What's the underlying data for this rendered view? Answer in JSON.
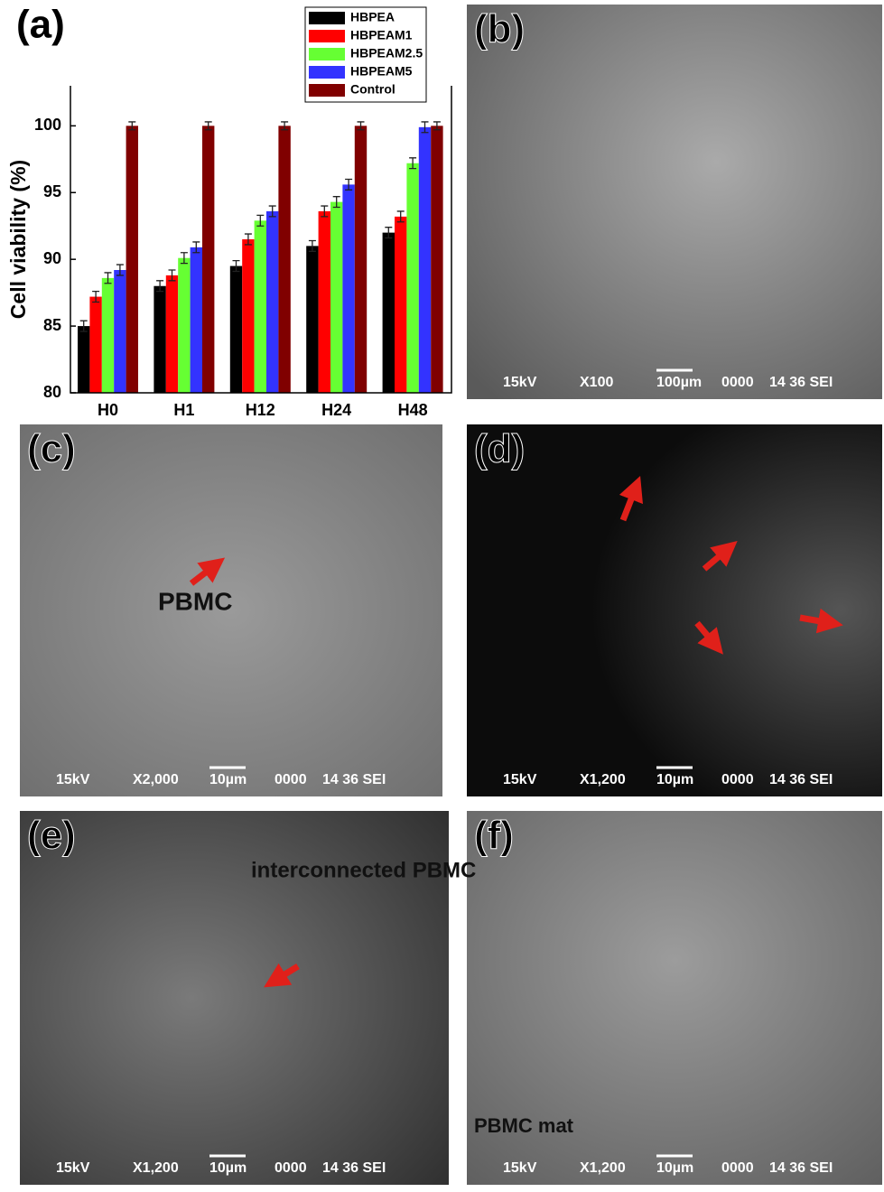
{
  "chart_data": {
    "type": "bar",
    "panel_label": "(a)",
    "y_label": "Cell viability (%)",
    "categories": [
      "H0",
      "H1",
      "H12",
      "H24",
      "H48"
    ],
    "series": [
      {
        "name": "HBPEA",
        "color": "#000000",
        "values": [
          85.0,
          88.0,
          89.5,
          91.0,
          92.0
        ],
        "errors": [
          0.4,
          0.4,
          0.4,
          0.4,
          0.4
        ]
      },
      {
        "name": "HBPEAM1",
        "color": "#ff0000",
        "values": [
          87.2,
          88.8,
          91.5,
          93.6,
          93.2
        ],
        "errors": [
          0.4,
          0.4,
          0.4,
          0.4,
          0.4
        ]
      },
      {
        "name": "HBPEAM2.5",
        "color": "#66ff33",
        "values": [
          88.6,
          90.1,
          92.9,
          94.3,
          97.2
        ],
        "errors": [
          0.4,
          0.4,
          0.4,
          0.4,
          0.4
        ]
      },
      {
        "name": "HBPEAM5",
        "color": "#3333ff",
        "values": [
          89.2,
          90.9,
          93.6,
          95.6,
          99.9
        ],
        "errors": [
          0.4,
          0.4,
          0.4,
          0.4,
          0.4
        ]
      },
      {
        "name": "Control",
        "color": "#800000",
        "values": [
          100,
          100,
          100,
          100,
          100
        ],
        "errors": [
          0.3,
          0.3,
          0.3,
          0.3,
          0.3
        ]
      }
    ],
    "ylim": [
      80,
      103
    ],
    "yticks": [
      80,
      85,
      90,
      95,
      100
    ],
    "grid": false,
    "legend": "top-right"
  },
  "panels": [
    {
      "label": "(b)",
      "info": [
        "15kV",
        "X100",
        "100µm",
        "0000",
        "14 36 SEI"
      ],
      "annotation": null
    },
    {
      "label": "(c)",
      "info": [
        "15kV",
        "X2,000",
        "10µm",
        "0000",
        "14 36 SEI"
      ],
      "annotation": "PBMC"
    },
    {
      "label": "(d)",
      "info": [
        "15kV",
        "X1,200",
        "10µm",
        "0000",
        "14 36 SEI"
      ],
      "annotation": null
    },
    {
      "label": "(e)",
      "info": [
        "15kV",
        "X1,200",
        "10µm",
        "0000",
        "14 36 SEI"
      ],
      "annotation": "interconnected PBMC"
    },
    {
      "label": "(f)",
      "info": [
        "15kV",
        "X1,200",
        "10µm",
        "0000",
        "14 36 SEI"
      ],
      "annotation": "PBMC mat"
    }
  ]
}
